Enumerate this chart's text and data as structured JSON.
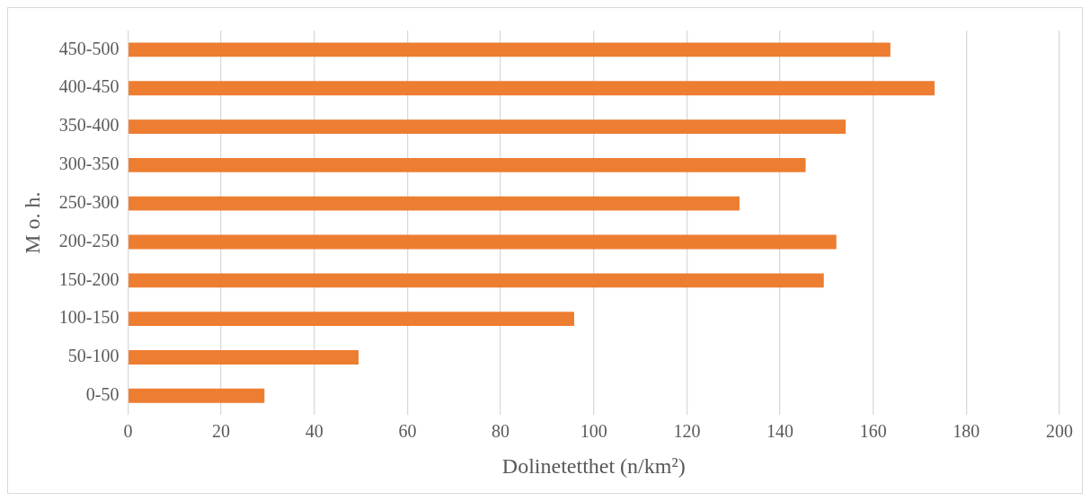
{
  "chart_data": {
    "type": "bar",
    "orientation": "horizontal",
    "categories": [
      "450-500",
      "400-450",
      "350-400",
      "300-350",
      "250-300",
      "200-250",
      "150-200",
      "100-150",
      "50-100",
      "0-50"
    ],
    "values": [
      163.7,
      173.2,
      154.1,
      145.5,
      131.3,
      152.1,
      149.4,
      95.8,
      49.5,
      29.3
    ],
    "color": "#ed7d31",
    "xlabel": "Dolinetetthet (n/km²)",
    "ylabel": "M o. h.",
    "xlim": [
      0,
      200
    ],
    "xticks": [
      0,
      20,
      40,
      60,
      80,
      100,
      120,
      140,
      160,
      180,
      200
    ],
    "grid": "x"
  }
}
